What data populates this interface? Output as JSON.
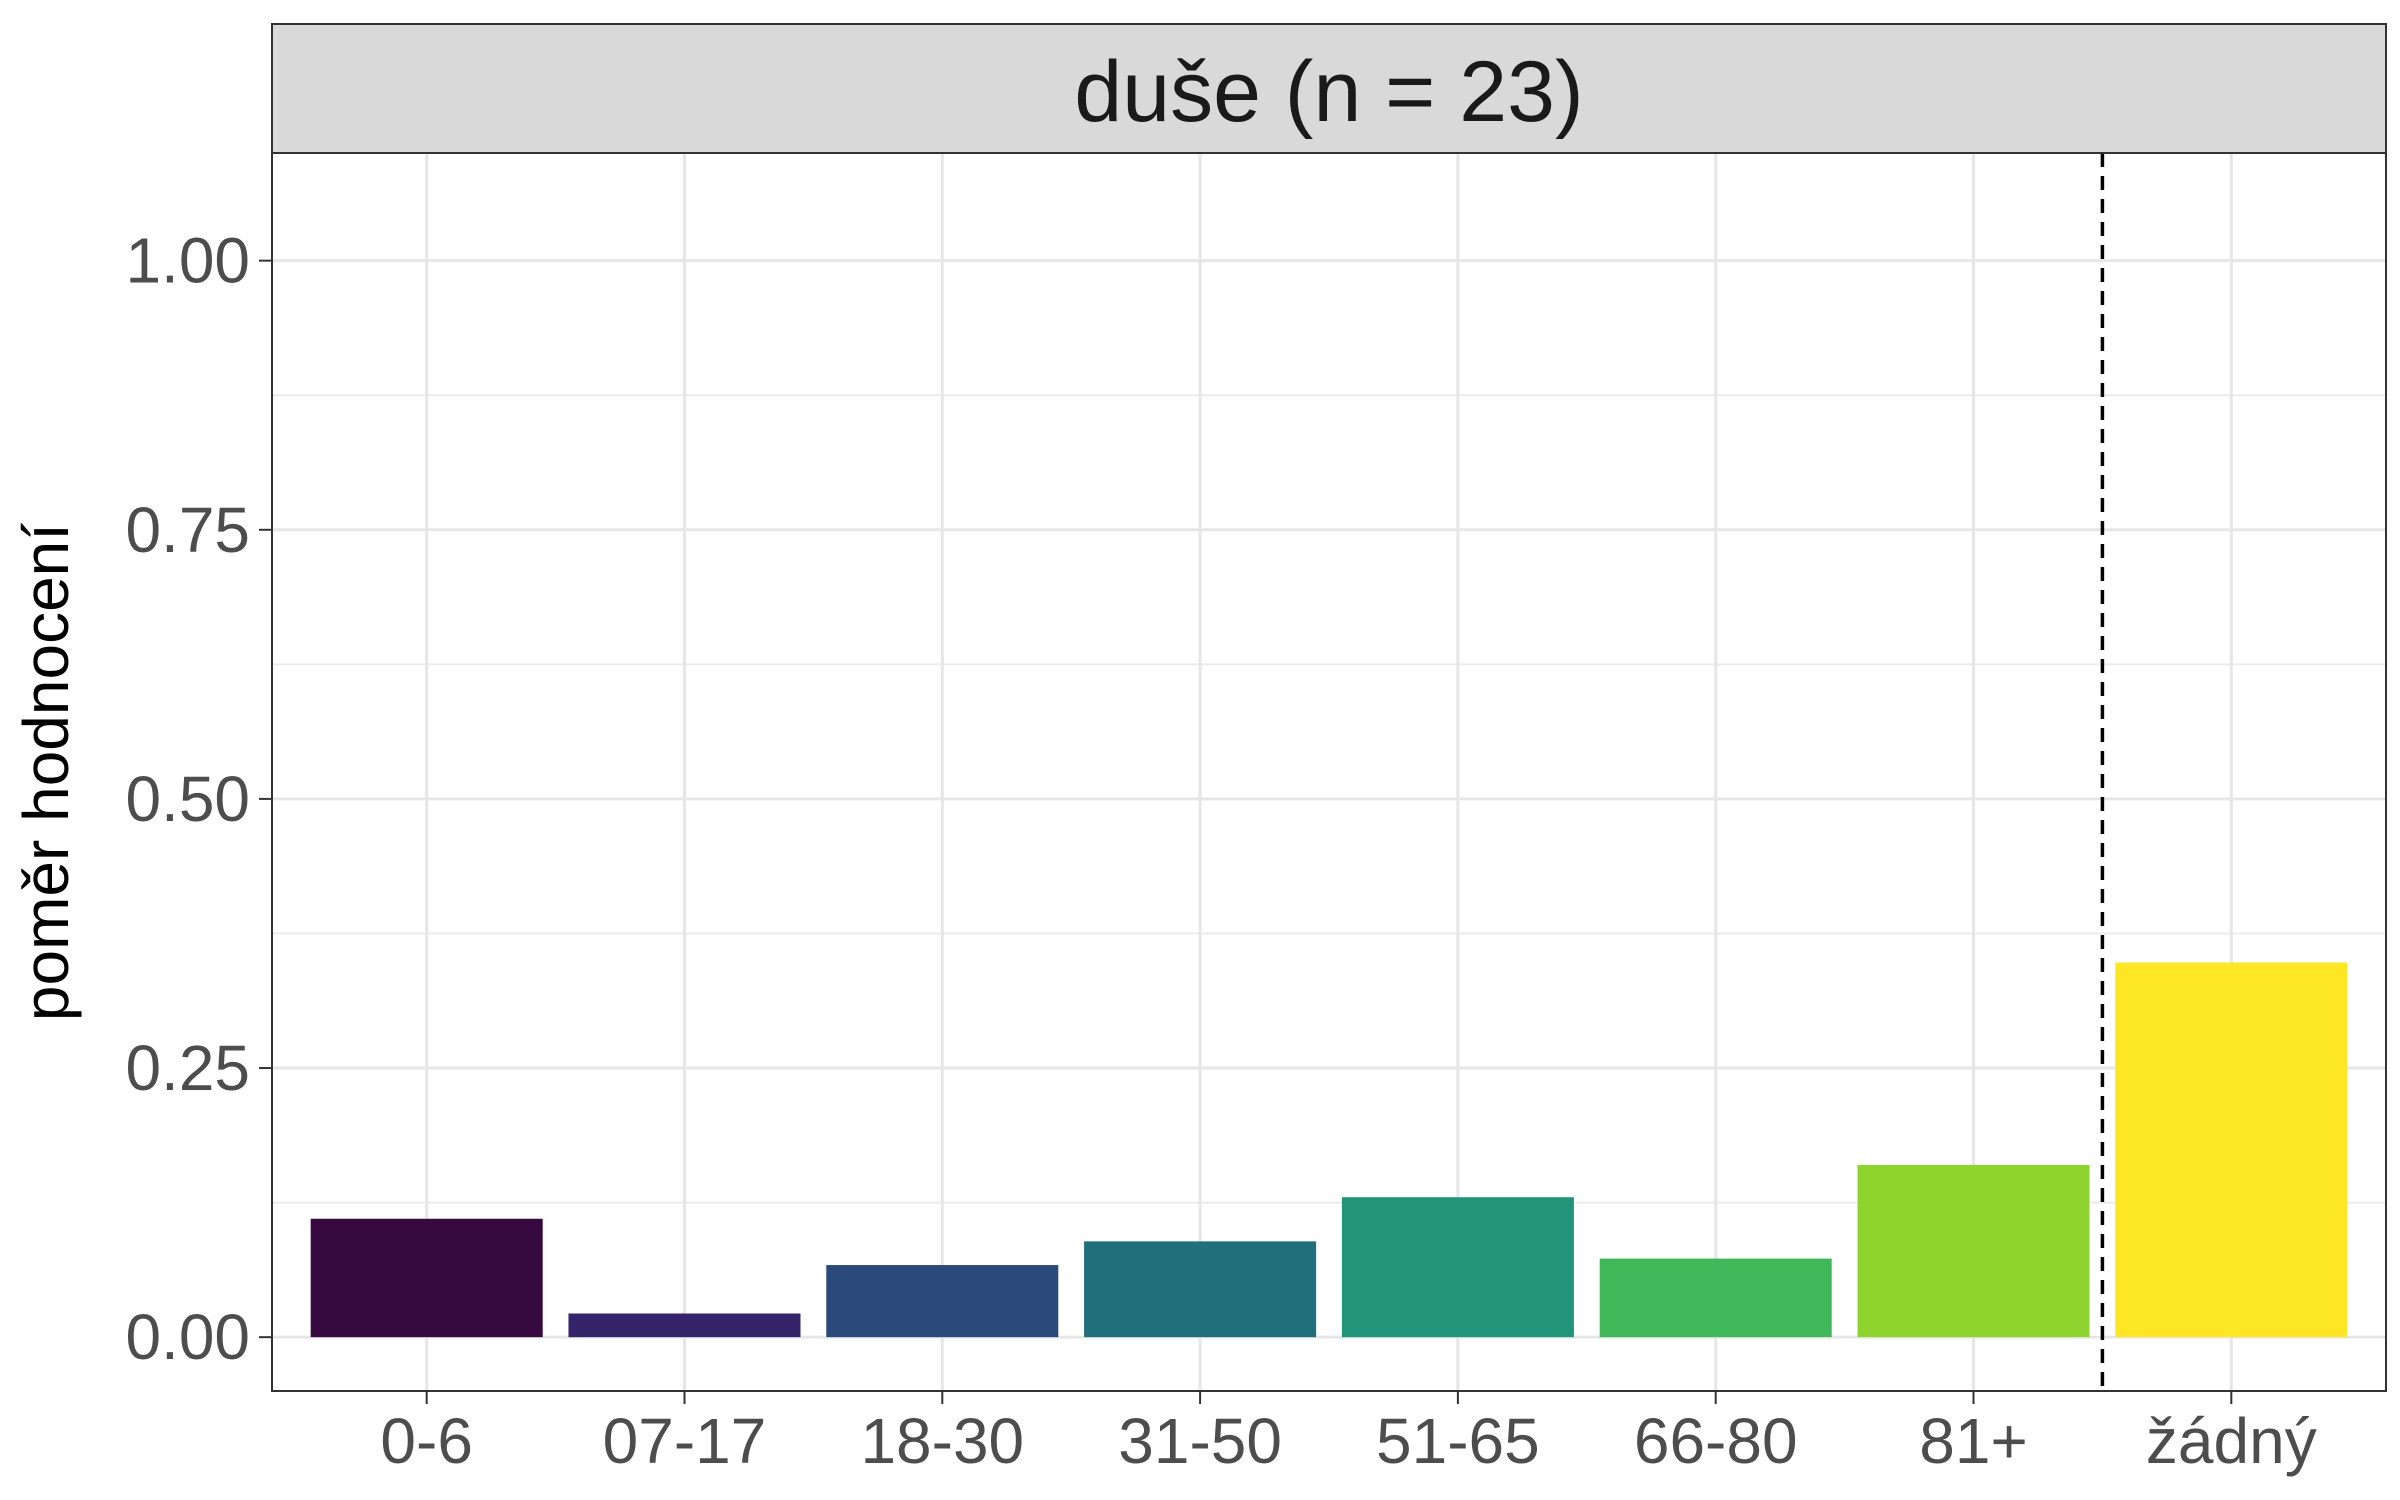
{
  "chart_data": {
    "type": "bar",
    "facet_title": "duše (n = 23)",
    "ylabel": "poměr hodnocení",
    "xlabel": "",
    "categories": [
      "0-6",
      "07-17",
      "18-30",
      "31-50",
      "51-65",
      "66-80",
      "81+",
      "žádný"
    ],
    "values": [
      0.11,
      0.022,
      0.067,
      0.089,
      0.13,
      0.073,
      0.16,
      0.348
    ],
    "colors": [
      "#360a3e",
      "#35246a",
      "#2b4a7b",
      "#206f7a",
      "#21947a",
      "#40b85a",
      "#8fd42e",
      "#fde724"
    ],
    "ylim": [
      -0.05,
      1.1
    ],
    "y_ticks": [
      0.0,
      0.25,
      0.5,
      0.75,
      1.0
    ],
    "y_tick_labels": [
      "0.00",
      "0.25",
      "0.50",
      "0.75",
      "1.00"
    ],
    "reference_line": {
      "between": [
        "81+",
        "žádný"
      ],
      "style": "dashed"
    },
    "grid": true,
    "legend": "none"
  }
}
